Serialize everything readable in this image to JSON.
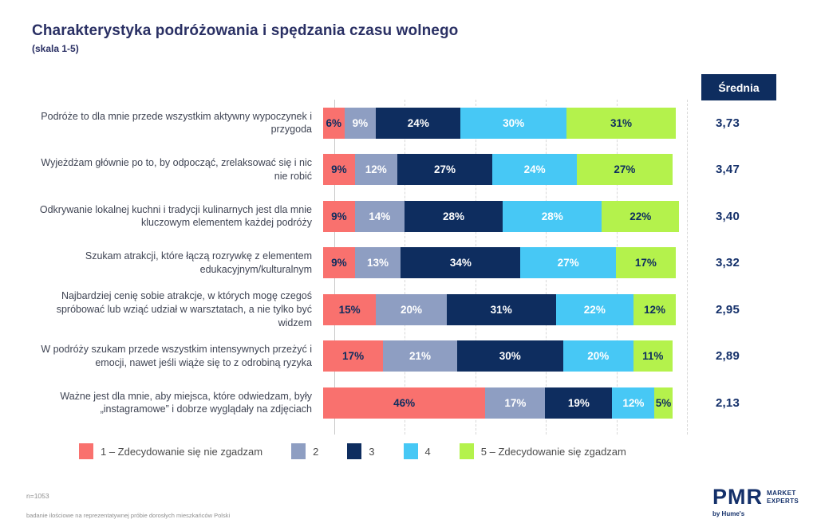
{
  "header": {
    "title": "Charakterystyka podróżowania i spędzania czasu wolnego",
    "subtitle": "(skala 1-5)"
  },
  "mean_column": {
    "header": "Średnia"
  },
  "chart_data": {
    "type": "bar",
    "orientation": "horizontal",
    "stacked": true,
    "unit": "%",
    "xlim": [
      0,
      100
    ],
    "gridline_step": 20,
    "grid": "dashed-vertical",
    "legend_position": "bottom",
    "series_labels": [
      "1 – Zdecydowanie się nie zgadzam",
      "2",
      "3",
      "4",
      "5 – Zdecydowanie się zgadzam"
    ],
    "series_colors": [
      "#F9716E",
      "#8E9EC2",
      "#0E2D5F",
      "#47C8F5",
      "#B4F24C"
    ],
    "series_text_colors": [
      "#0E2D5F",
      "#FFFFFF",
      "#FFFFFF",
      "#FFFFFF",
      "#0E2D5F"
    ],
    "mean_values_label": "Średnia",
    "rows": [
      {
        "label": "Podróże to dla mnie przede wszystkim aktywny wypoczynek i przygoda",
        "values": [
          6,
          9,
          24,
          30,
          31
        ],
        "mean": "3,73"
      },
      {
        "label": "Wyjeżdżam głównie po to, by odpocząć, zrelaksować się i nic nie robić",
        "values": [
          9,
          12,
          27,
          24,
          27
        ],
        "mean": "3,47"
      },
      {
        "label": "Odkrywanie lokalnej kuchni i tradycji kulinarnych jest dla mnie kluczowym elementem każdej podróży",
        "values": [
          9,
          14,
          28,
          28,
          22
        ],
        "mean": "3,40"
      },
      {
        "label": "Szukam atrakcji, które łączą rozrywkę z elementem edukacyjnym/kulturalnym",
        "values": [
          9,
          13,
          34,
          27,
          17
        ],
        "mean": "3,32"
      },
      {
        "label": "Najbardziej cenię sobie atrakcje, w których mogę czegoś spróbować lub wziąć udział w warsztatach, a nie tylko być widzem",
        "values": [
          15,
          20,
          31,
          22,
          12
        ],
        "mean": "2,95"
      },
      {
        "label": "W podróży szukam przede wszystkim intensywnych przeżyć i emocji, nawet jeśli wiąże się to z odrobiną ryzyka",
        "values": [
          17,
          21,
          30,
          20,
          11
        ],
        "mean": "2,89"
      },
      {
        "label": "Ważne jest dla mnie, aby miejsca, które odwiedzam, były „instagramowe” i dobrze wyglądały na zdjęciach",
        "values": [
          46,
          17,
          19,
          12,
          5
        ],
        "mean": "2,13"
      }
    ]
  },
  "footer": {
    "sample": "n=1053",
    "methodology": "badanie ilościowe na reprezentatywnej próbie dorosłych mieszkańców Polski"
  },
  "logo": {
    "name": "PMR",
    "tagline_line1": "MARKET",
    "tagline_line2": "EXPERTS",
    "byline": "by Hume's"
  }
}
